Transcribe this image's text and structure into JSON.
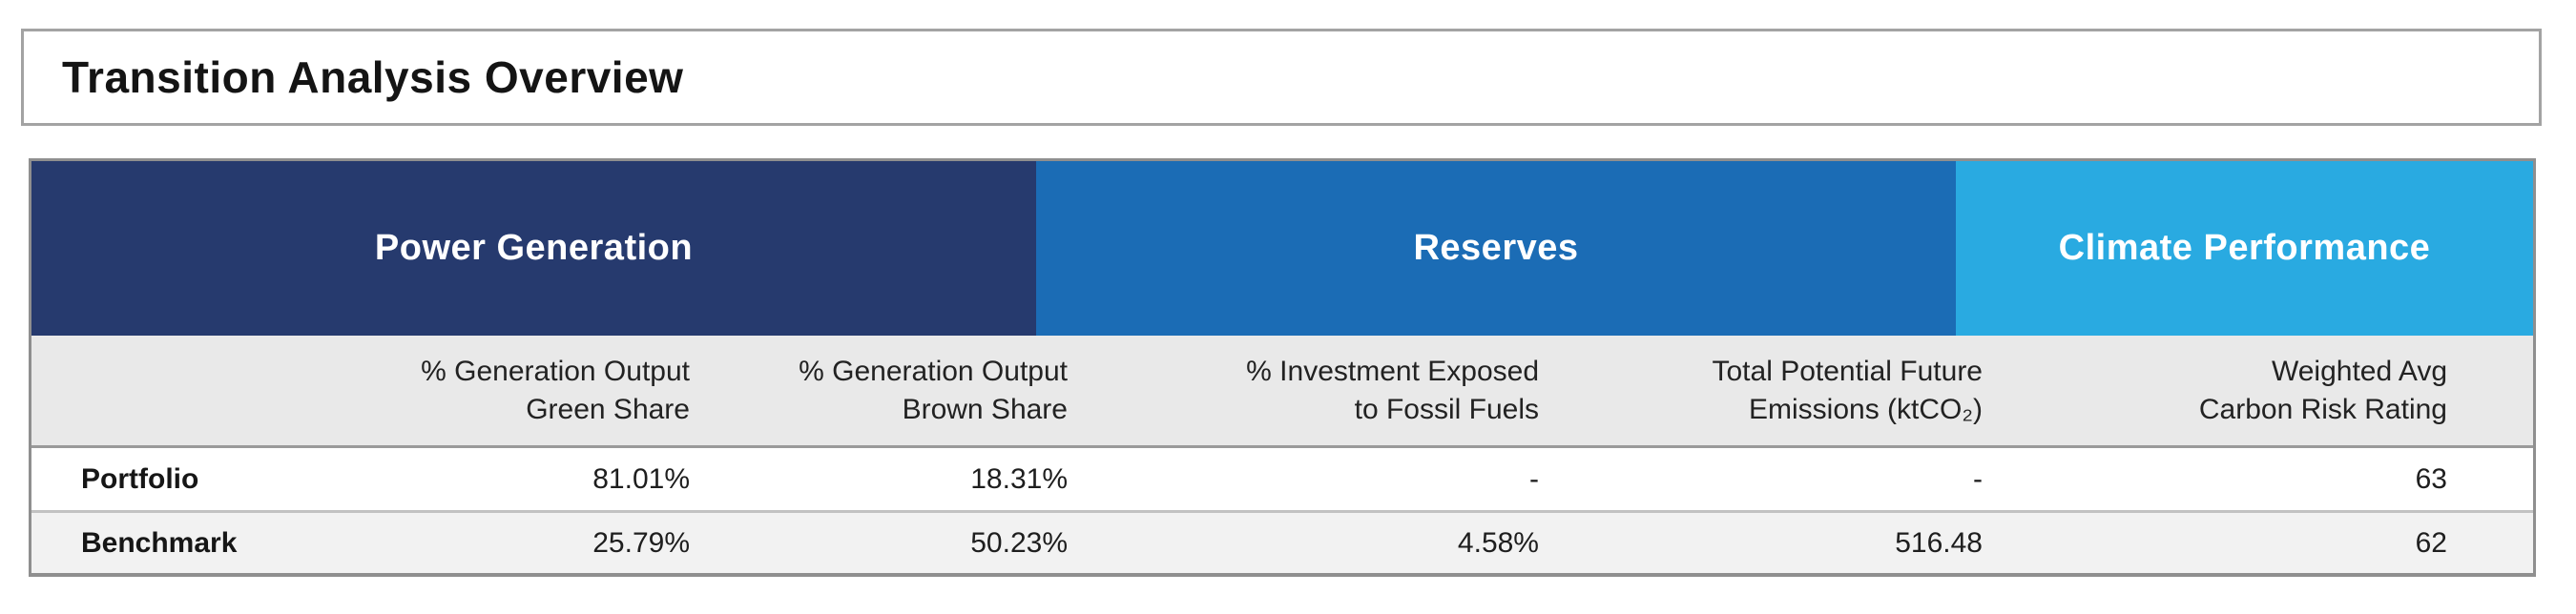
{
  "title": "Transition Analysis Overview",
  "table": {
    "groups": [
      {
        "label": "Power Generation",
        "color": "#263a6e"
      },
      {
        "label": "Reserves",
        "color": "#1b6cb5"
      },
      {
        "label": "Climate Performance",
        "color": "#29aae1"
      }
    ],
    "columns": [
      {
        "line1": "% Generation Output",
        "line2": "Green Share"
      },
      {
        "line1": "% Generation Output",
        "line2": "Brown Share"
      },
      {
        "line1": "% Investment Exposed",
        "line2": "to Fossil Fuels"
      },
      {
        "line1": "Total Potential Future",
        "line2": "Emissions (ktCO₂)"
      },
      {
        "line1": "Weighted Avg",
        "line2": "Carbon Risk Rating"
      }
    ],
    "rows": [
      {
        "label": "Portfolio",
        "values": [
          "81.01%",
          "18.31%",
          "-",
          "-",
          "63"
        ]
      },
      {
        "label": "Benchmark",
        "values": [
          "25.79%",
          "50.23%",
          "4.58%",
          "516.48",
          "62"
        ]
      }
    ]
  }
}
